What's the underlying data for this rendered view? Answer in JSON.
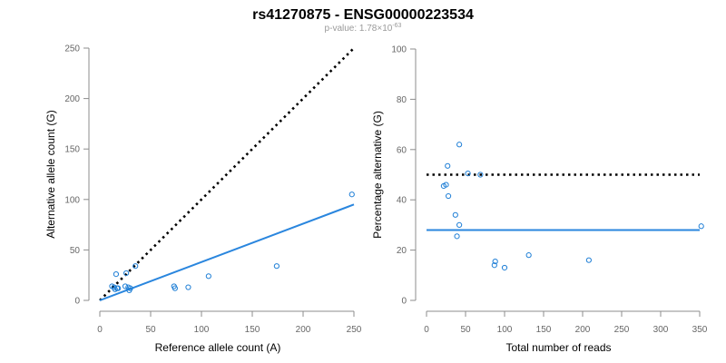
{
  "title": "rs41270875 - ENSG00000223534",
  "subtitle_prefix": "p-value: 1.78×10",
  "subtitle_exponent": "-63",
  "colors": {
    "points": "#1f7fd6",
    "fit_line": "#2a86de",
    "reference_line": "#000000",
    "axis": "#8c8c8c",
    "tick_text": "#666666"
  },
  "chart_data": [
    {
      "type": "scatter",
      "xlabel": "Reference allele count (A)",
      "ylabel": "Alternative allele count (G)",
      "xlim": [
        0,
        250
      ],
      "ylim": [
        0,
        250
      ],
      "xticks": [
        0,
        50,
        100,
        150,
        200,
        250
      ],
      "yticks": [
        0,
        50,
        100,
        150,
        200,
        250
      ],
      "points": [
        {
          "x": 12,
          "y": 14
        },
        {
          "x": 14,
          "y": 13
        },
        {
          "x": 15,
          "y": 11
        },
        {
          "x": 16,
          "y": 26
        },
        {
          "x": 17,
          "y": 12
        },
        {
          "x": 18,
          "y": 12
        },
        {
          "x": 25,
          "y": 14
        },
        {
          "x": 26,
          "y": 27
        },
        {
          "x": 28,
          "y": 13
        },
        {
          "x": 29,
          "y": 10
        },
        {
          "x": 30,
          "y": 12
        },
        {
          "x": 35,
          "y": 34
        },
        {
          "x": 73,
          "y": 14
        },
        {
          "x": 74,
          "y": 12
        },
        {
          "x": 87,
          "y": 13
        },
        {
          "x": 107,
          "y": 24
        },
        {
          "x": 174,
          "y": 34
        },
        {
          "x": 248,
          "y": 105
        }
      ],
      "fit_line": {
        "x": [
          0,
          250
        ],
        "y": [
          0,
          95
        ]
      },
      "reference_line": {
        "x": [
          0,
          250
        ],
        "y": [
          0,
          250
        ],
        "style": "dotted"
      }
    },
    {
      "type": "scatter",
      "xlabel": "Total number of reads",
      "ylabel": "Percentage alternative (G)",
      "xlim": [
        0,
        350
      ],
      "ylim": [
        0,
        100
      ],
      "xticks": [
        0,
        50,
        100,
        150,
        200,
        250,
        300,
        350
      ],
      "yticks": [
        0,
        20,
        40,
        60,
        80,
        100
      ],
      "points": [
        {
          "x": 22,
          "y": 45.5
        },
        {
          "x": 25,
          "y": 46
        },
        {
          "x": 27,
          "y": 53.5
        },
        {
          "x": 28,
          "y": 41.5
        },
        {
          "x": 37,
          "y": 34
        },
        {
          "x": 39,
          "y": 25.5
        },
        {
          "x": 42,
          "y": 30
        },
        {
          "x": 42,
          "y": 62
        },
        {
          "x": 53,
          "y": 50.5
        },
        {
          "x": 69,
          "y": 50
        },
        {
          "x": 87,
          "y": 14
        },
        {
          "x": 88,
          "y": 15.5
        },
        {
          "x": 100,
          "y": 13
        },
        {
          "x": 131,
          "y": 18
        },
        {
          "x": 208,
          "y": 16
        },
        {
          "x": 352,
          "y": 29.5
        }
      ],
      "fit_line": {
        "x": [
          0,
          350
        ],
        "y": [
          28,
          28
        ]
      },
      "reference_line": {
        "x": [
          0,
          350
        ],
        "y": [
          50,
          50
        ],
        "style": "dotted"
      }
    }
  ]
}
